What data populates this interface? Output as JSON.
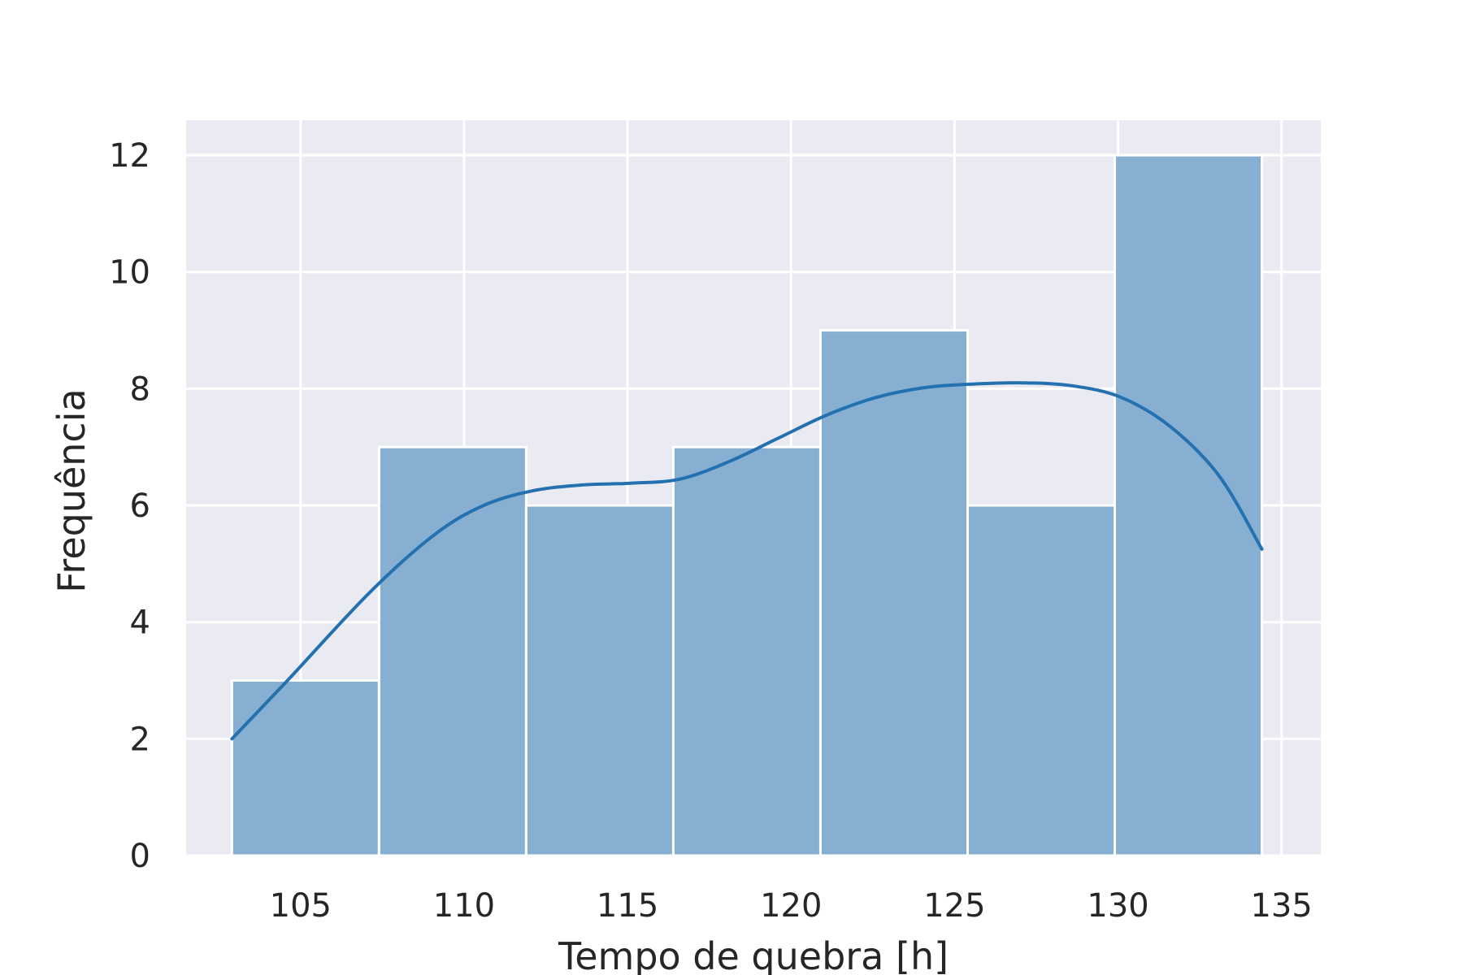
{
  "chart_data": {
    "type": "bar",
    "subtype": "histogram-with-kde",
    "title": "",
    "xlabel": "Tempo de quebra [h]",
    "ylabel": "Frequência",
    "xlim": [
      101.5,
      136.2
    ],
    "ylim": [
      0,
      12.6
    ],
    "xticks": [
      105,
      110,
      115,
      120,
      125,
      130,
      135
    ],
    "yticks": [
      0,
      2,
      4,
      6,
      8,
      10,
      12
    ],
    "grid": true,
    "legend": "none",
    "colors": {
      "background": "#eaeaf2",
      "grid": "#ffffff",
      "bar": "#86afd2",
      "kde": "#2471b0",
      "text": "#262626"
    },
    "bins": [
      {
        "x0": 102.9,
        "x1": 107.4,
        "count": 3
      },
      {
        "x0": 107.4,
        "x1": 111.9,
        "count": 7
      },
      {
        "x0": 111.9,
        "x1": 116.4,
        "count": 6
      },
      {
        "x0": 116.4,
        "x1": 120.9,
        "count": 7
      },
      {
        "x0": 120.9,
        "x1": 125.4,
        "count": 9
      },
      {
        "x0": 125.4,
        "x1": 129.9,
        "count": 6
      },
      {
        "x0": 129.9,
        "x1": 134.4,
        "count": 12
      }
    ],
    "kde": {
      "x": [
        102.9,
        104.6,
        107.1,
        109.1,
        110.6,
        112.1,
        113.6,
        115.1,
        116.6,
        118.1,
        119.6,
        121.1,
        122.6,
        124.1,
        125.6,
        127.1,
        128.6,
        130.1,
        131.6,
        133.1,
        134.4
      ],
      "y": [
        2.0,
        3.0,
        4.5,
        5.5,
        6.0,
        6.25,
        6.35,
        6.38,
        6.45,
        6.75,
        7.15,
        7.55,
        7.85,
        8.02,
        8.08,
        8.1,
        8.05,
        7.85,
        7.35,
        6.5,
        5.25
      ]
    }
  }
}
